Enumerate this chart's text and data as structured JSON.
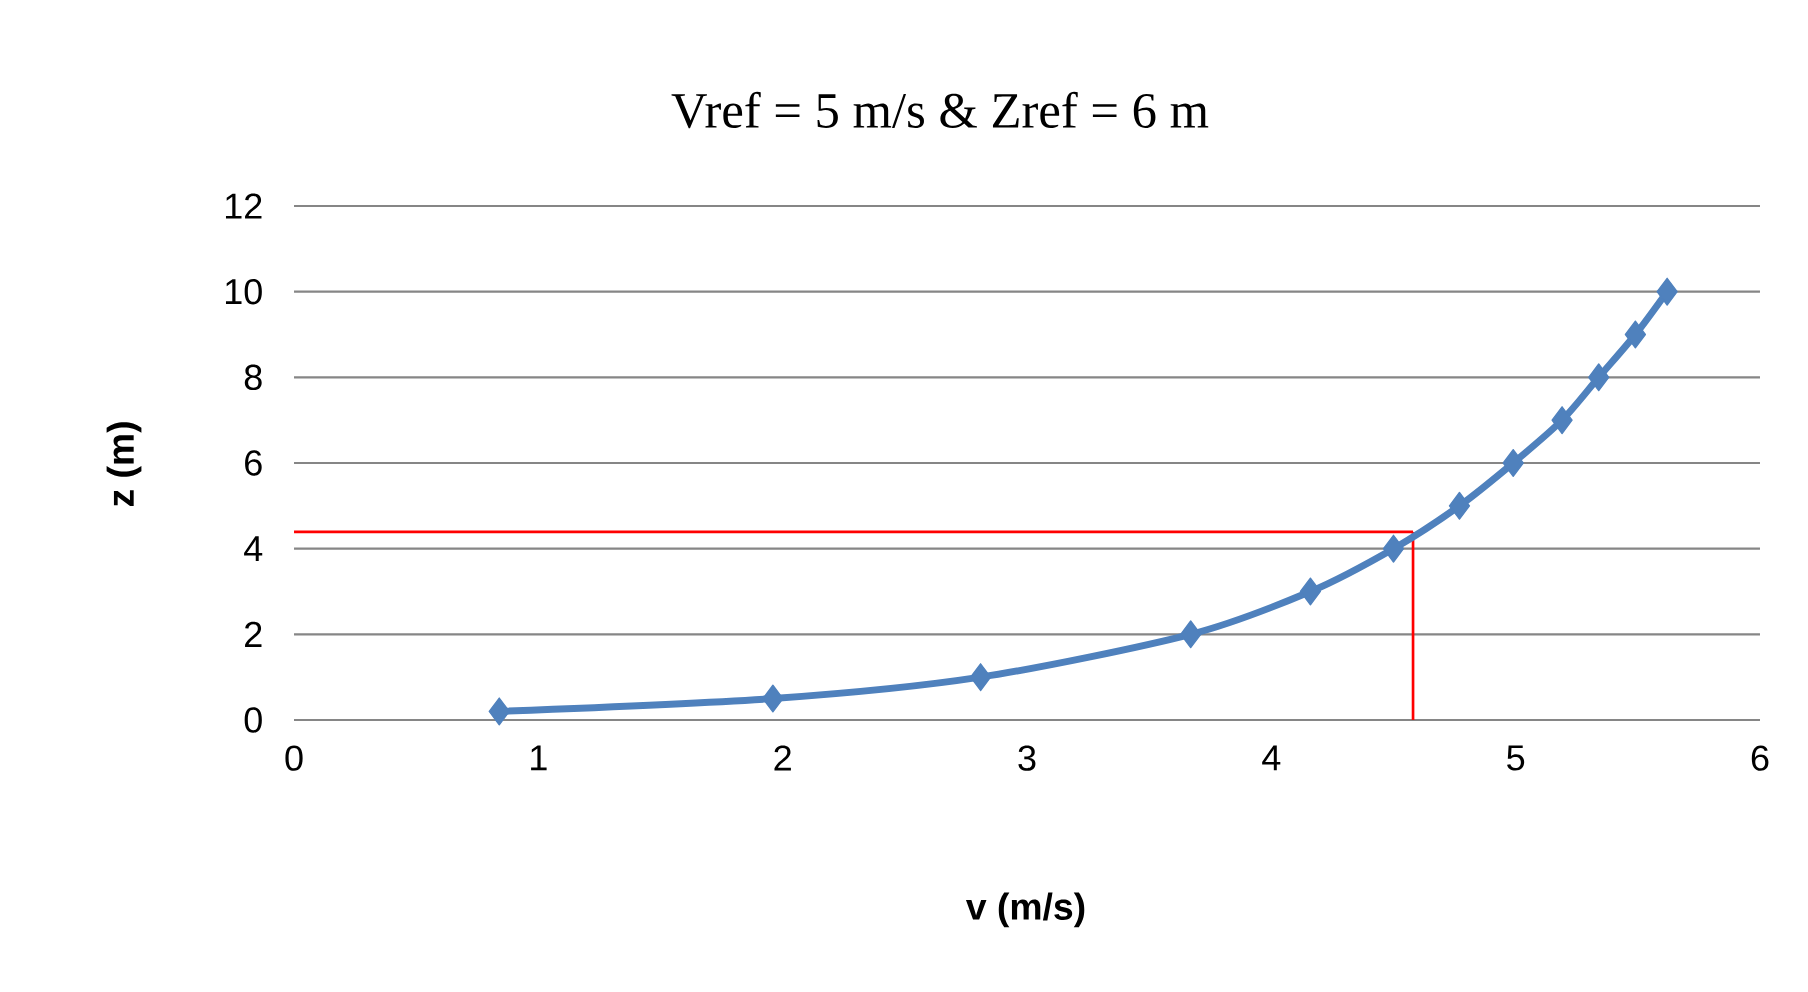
{
  "chart_data": {
    "type": "line",
    "title": "Vref = 5 m/s & Zref = 6 m",
    "xlabel": "v (m/s)",
    "ylabel": "z (m)",
    "x": [
      0.84,
      1.96,
      2.81,
      3.67,
      4.16,
      4.5,
      4.77,
      4.99,
      5.19,
      5.34,
      5.49,
      5.62
    ],
    "series": [
      {
        "color": "#4f81bd",
        "values": [
          0.2,
          0.5,
          1,
          2,
          3,
          4,
          5,
          6,
          7,
          8,
          9,
          10
        ]
      }
    ],
    "xlim": [
      0,
      6
    ],
    "xticks": [
      0,
      1,
      2,
      3,
      4,
      5,
      6
    ],
    "ylim": [
      0,
      12
    ],
    "yticks": [
      0,
      2,
      4,
      6,
      8,
      10,
      12
    ],
    "grid": "y",
    "marker": "diamond",
    "line_style": "solid",
    "ref_lines": [
      {
        "axis": "y",
        "value": 4.39,
        "color": "#ff0000"
      },
      {
        "axis": "x",
        "value": 4.58,
        "color": "#ff0000"
      }
    ]
  }
}
